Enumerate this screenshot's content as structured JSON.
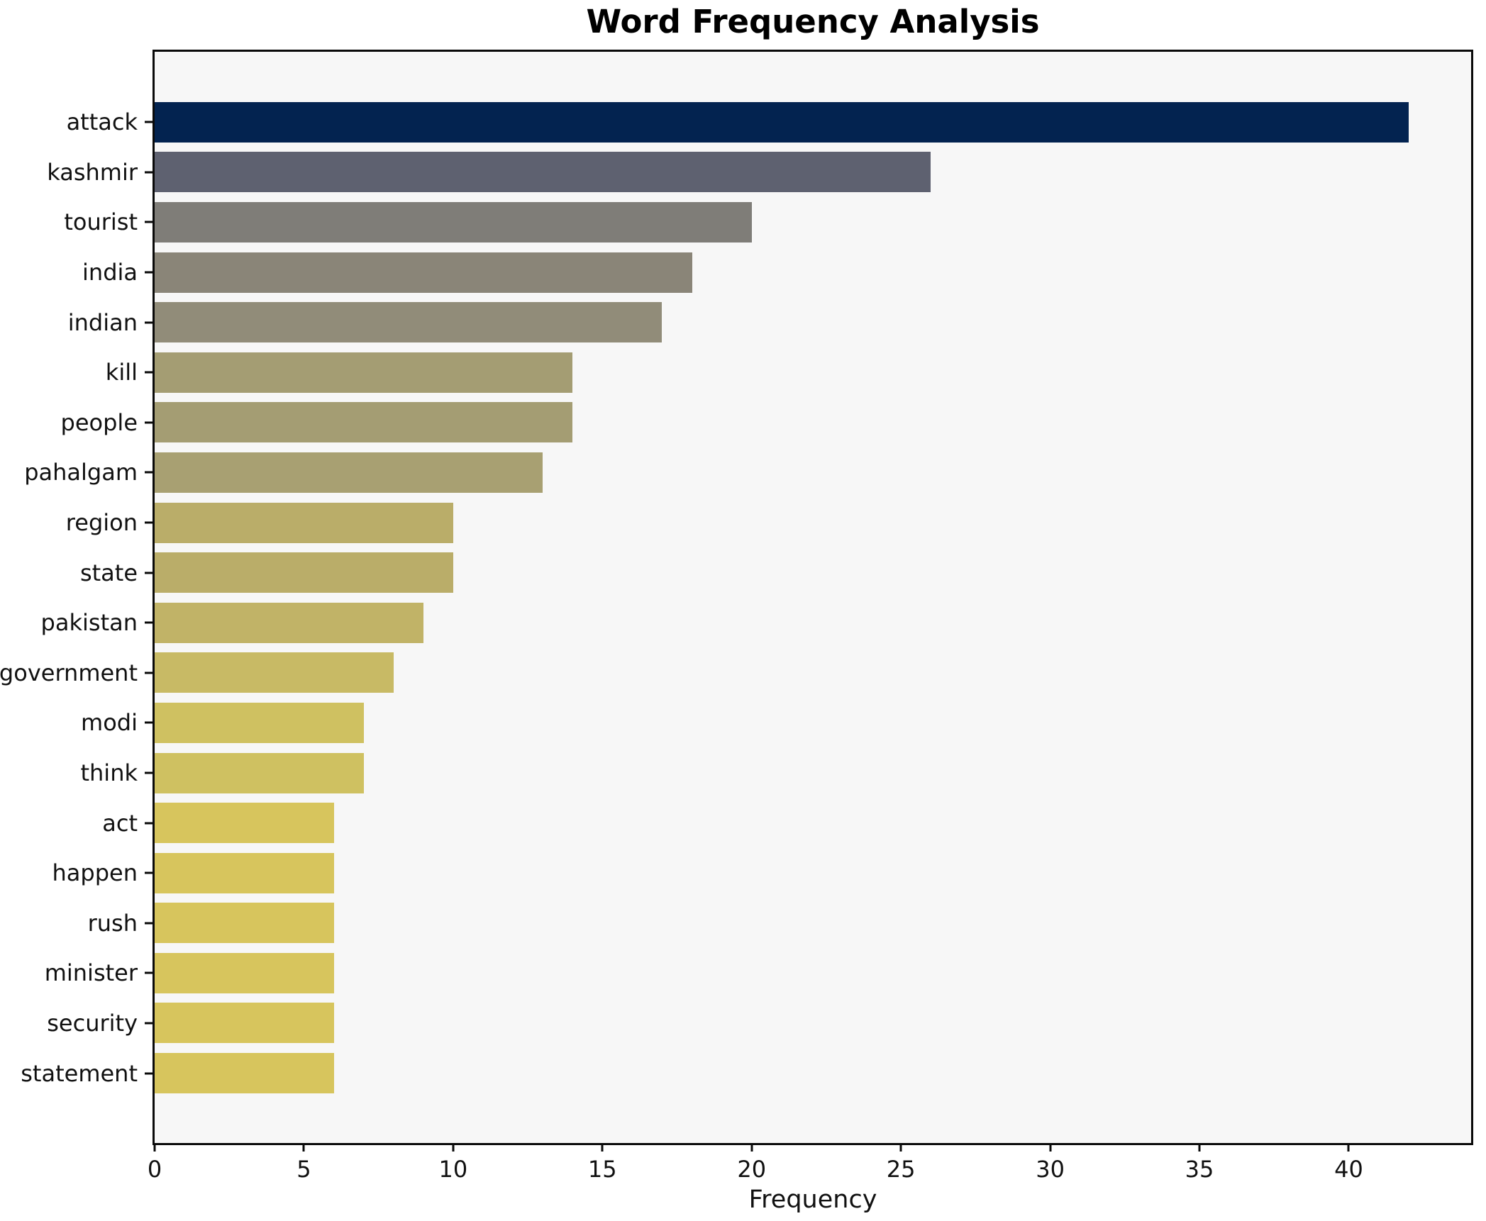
{
  "title": "Word Frequency Analysis",
  "chart_data": {
    "type": "bar",
    "orientation": "horizontal",
    "title": "Word Frequency Analysis",
    "xlabel": "Frequency",
    "ylabel": "",
    "categories": [
      "attack",
      "kashmir",
      "tourist",
      "india",
      "indian",
      "kill",
      "people",
      "pahalgam",
      "region",
      "state",
      "pakistan",
      "government",
      "modi",
      "think",
      "act",
      "happen",
      "rush",
      "minister",
      "security",
      "statement"
    ],
    "values": [
      42,
      26,
      20,
      18,
      17,
      14,
      14,
      13,
      10,
      10,
      9,
      8,
      7,
      7,
      6,
      6,
      6,
      6,
      6,
      6
    ],
    "bar_colors": [
      "#032350",
      "#5e6170",
      "#7f7d78",
      "#8a8578",
      "#918c79",
      "#a49d73",
      "#a49d73",
      "#a8a072",
      "#baad69",
      "#baad69",
      "#c1b367",
      "#c8ba65",
      "#cfc161",
      "#cfc161",
      "#d7c55d",
      "#d7c55d",
      "#d7c55d",
      "#d7c55d",
      "#d7c55d",
      "#d7c55d"
    ],
    "xlim": [
      0,
      44.1
    ],
    "xticks": [
      0,
      5,
      10,
      15,
      20,
      25,
      30,
      35,
      40
    ],
    "xtick_labels": [
      "0",
      "5",
      "10",
      "15",
      "20",
      "25",
      "30",
      "35",
      "40"
    ],
    "grid": false,
    "legend": "none",
    "colormap": "cividis reversed by value",
    "plot_background": "#f7f7f7",
    "figure_background": "#ffffff",
    "axis_color": "#0a0a0a",
    "text_color": "#111111"
  }
}
